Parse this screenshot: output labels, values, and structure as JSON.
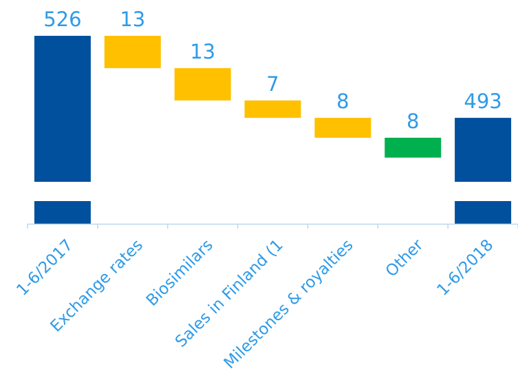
{
  "chart_data": {
    "type": "waterfall",
    "categories": [
      "1-6/2017",
      "Exchange rates",
      "Biosimilars",
      "Sales in Finland (1",
      "Milestones & royalties",
      "Other",
      "1-6/2018"
    ],
    "data_labels": [
      "526",
      "13",
      "13",
      "7",
      "8",
      "8",
      "493"
    ],
    "steps": [
      {
        "kind": "total",
        "value": 526
      },
      {
        "kind": "decrease",
        "value": 13
      },
      {
        "kind": "decrease",
        "value": 13
      },
      {
        "kind": "decrease",
        "value": 7
      },
      {
        "kind": "decrease",
        "value": 8
      },
      {
        "kind": "increase",
        "value": 8
      },
      {
        "kind": "total",
        "value": 493
      }
    ],
    "y_axis_break": true,
    "colors": {
      "total": "#00509E",
      "decrease": "#FFC000",
      "increase": "#00B04F",
      "text": "#2E9BE8",
      "axis": "#BDD7EE"
    }
  }
}
